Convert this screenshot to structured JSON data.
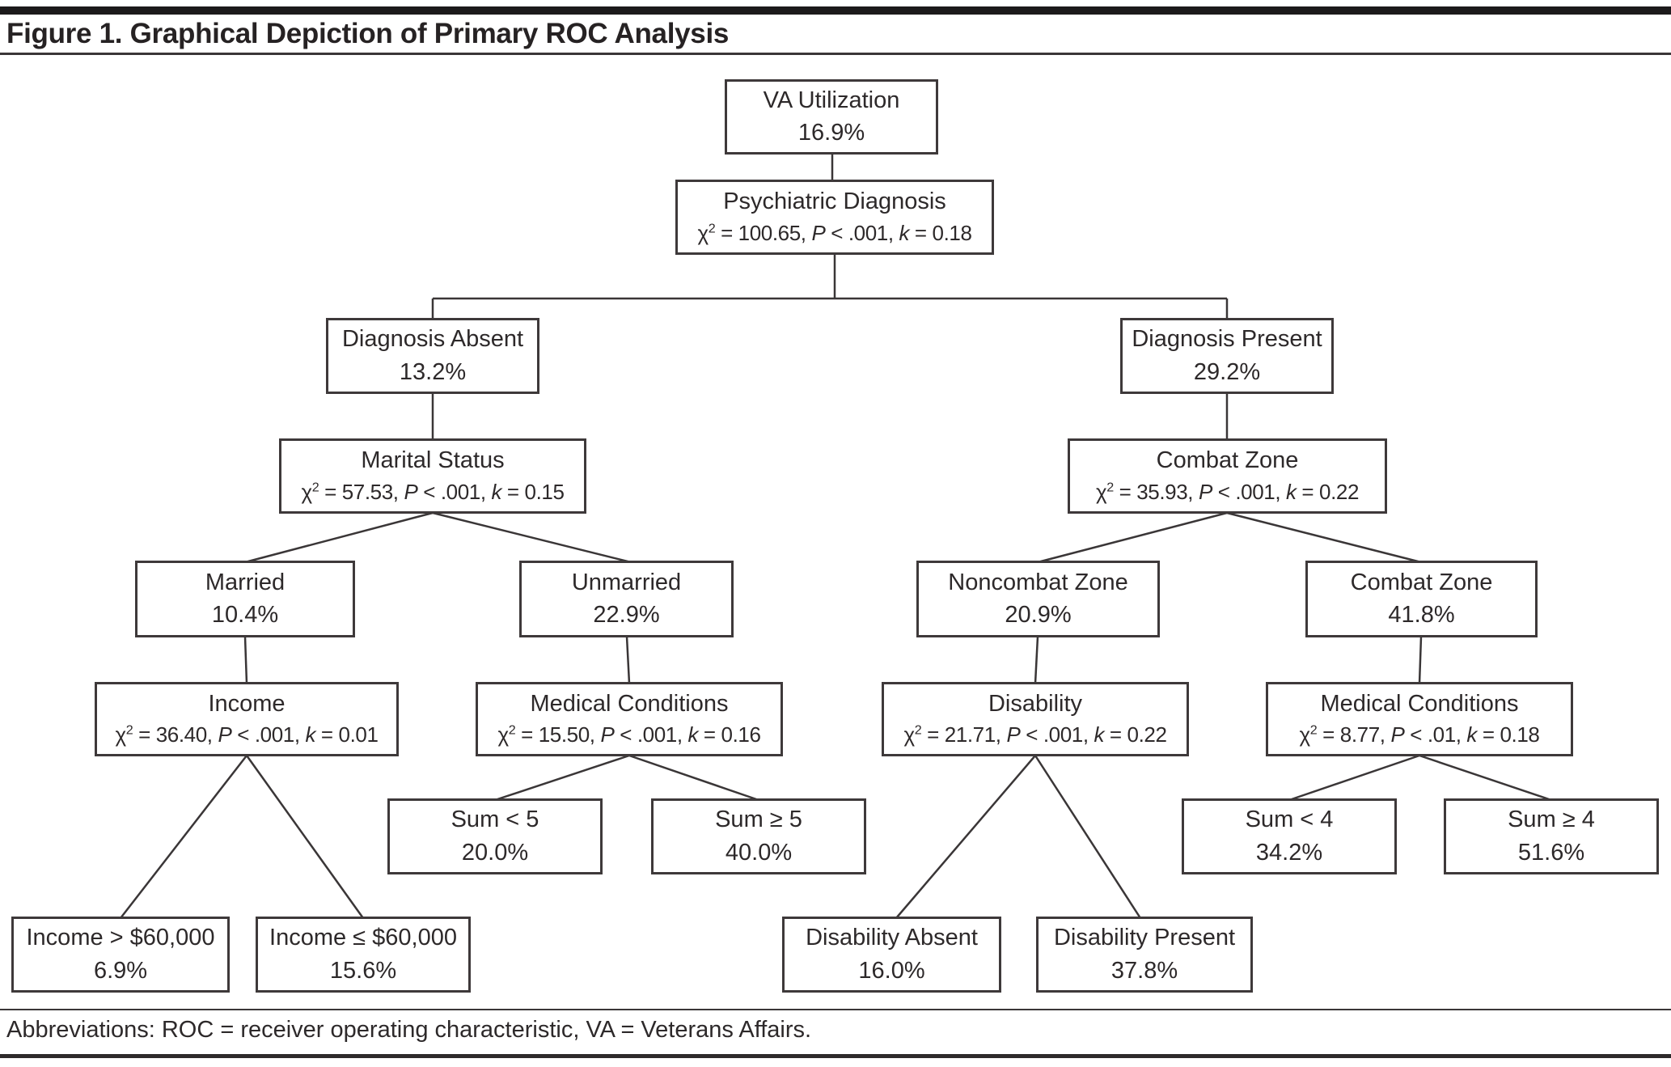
{
  "figure": {
    "title": "Figure 1. Graphical Depiction of Primary ROC Analysis",
    "footnote": "Abbreviations: ROC = receiver operating characteristic, VA = Veterans Affairs."
  },
  "tree": {
    "nodes": {
      "va": {
        "label": "VA Utilization",
        "value": "16.9%"
      },
      "psych": {
        "label": "Psychiatric Diagnosis",
        "stat": "χ² = 100.65, P < .001, k = 0.18"
      },
      "diag_absent": {
        "label": "Diagnosis Absent",
        "value": "13.2%"
      },
      "diag_present": {
        "label": "Diagnosis Present",
        "value": "29.2%"
      },
      "marital": {
        "label": "Marital Status",
        "stat": "χ² = 57.53, P < .001, k = 0.15"
      },
      "combat_split": {
        "label": "Combat Zone",
        "stat": "χ² = 35.93, P < .001, k = 0.22"
      },
      "married": {
        "label": "Married",
        "value": "10.4%"
      },
      "unmarried": {
        "label": "Unmarried",
        "value": "22.9%"
      },
      "noncombat": {
        "label": "Noncombat Zone",
        "value": "20.9%"
      },
      "combat": {
        "label": "Combat Zone",
        "value": "41.8%"
      },
      "income_split": {
        "label": "Income",
        "stat": "χ² = 36.40, P < .001, k = 0.01"
      },
      "medcond_left": {
        "label": "Medical Conditions",
        "stat": "χ² = 15.50, P < .001, k = 0.16"
      },
      "disability_split": {
        "label": "Disability",
        "stat": "χ² = 21.71, P < .001, k = 0.22"
      },
      "medcond_right": {
        "label": "Medical Conditions",
        "stat": "χ² = 8.77, P < .01, k = 0.18"
      },
      "sum_lt5": {
        "label": "Sum < 5",
        "value": "20.0%"
      },
      "sum_ge5": {
        "label": "Sum ≥ 5",
        "value": "40.0%"
      },
      "sum_lt4": {
        "label": "Sum < 4",
        "value": "34.2%"
      },
      "sum_ge4": {
        "label": "Sum ≥ 4",
        "value": "51.6%"
      },
      "income_gt": {
        "label": "Income > $60,000",
        "value": "6.9%"
      },
      "income_le": {
        "label": "Income ≤ $60,000",
        "value": "15.6%"
      },
      "dis_absent": {
        "label": "Disability Absent",
        "value": "16.0%"
      },
      "dis_present": {
        "label": "Disability Present",
        "value": "37.8%"
      }
    }
  },
  "colors": {
    "ink": "#2d292a",
    "border": "#3e393a",
    "background": "#ffffff"
  }
}
